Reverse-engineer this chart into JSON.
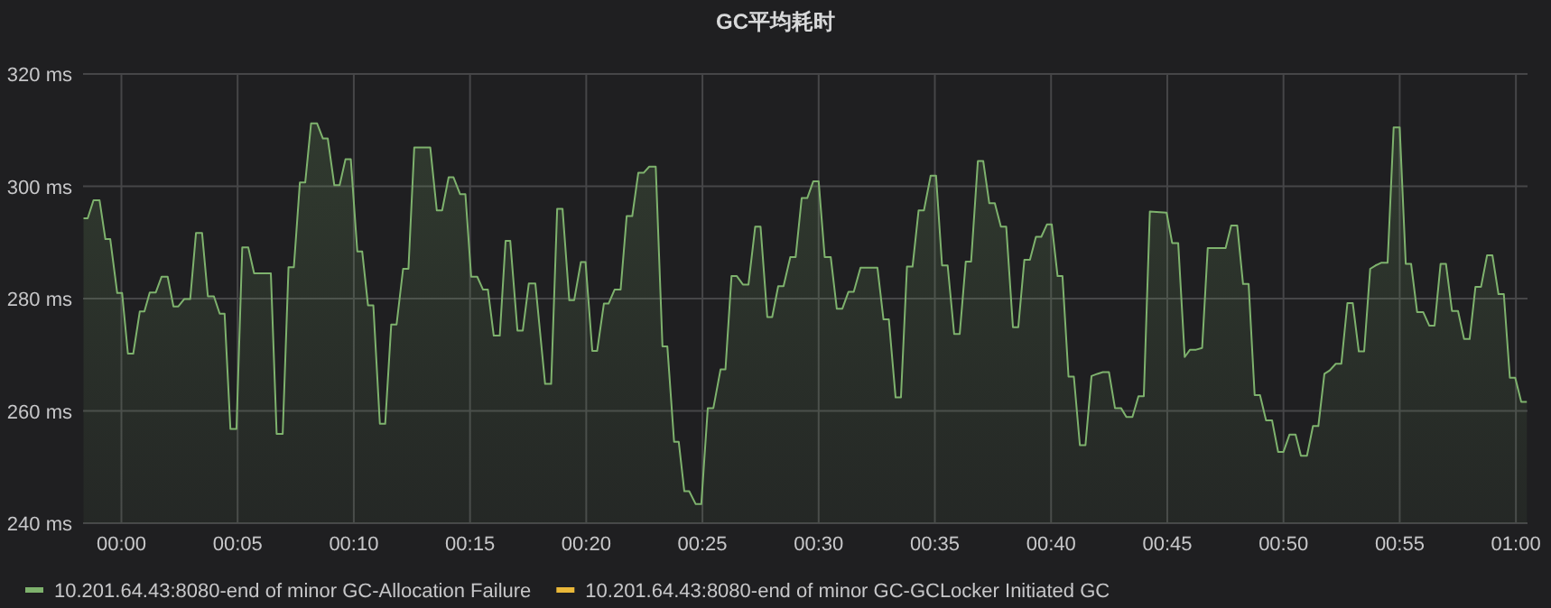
{
  "chart_data": {
    "type": "area",
    "title": "GC平均耗时",
    "xlim": [
      -1.65,
      60.5
    ],
    "ylim": [
      240,
      320
    ],
    "xticks": [
      {
        "value": 0,
        "label": "00:00"
      },
      {
        "value": 5,
        "label": "00:05"
      },
      {
        "value": 10,
        "label": "00:10"
      },
      {
        "value": 15,
        "label": "00:15"
      },
      {
        "value": 20,
        "label": "00:20"
      },
      {
        "value": 25,
        "label": "00:25"
      },
      {
        "value": 30,
        "label": "00:30"
      },
      {
        "value": 35,
        "label": "00:35"
      },
      {
        "value": 40,
        "label": "00:40"
      },
      {
        "value": 45,
        "label": "00:45"
      },
      {
        "value": 50,
        "label": "00:50"
      },
      {
        "value": 55,
        "label": "00:55"
      },
      {
        "value": 60,
        "label": "01:00"
      }
    ],
    "yticks": [
      {
        "value": 240,
        "label": "240 ms"
      },
      {
        "value": 260,
        "label": "260 ms"
      },
      {
        "value": 280,
        "label": "280 ms"
      },
      {
        "value": 300,
        "label": "300 ms"
      },
      {
        "value": 320,
        "label": "320 ms"
      }
    ],
    "grid": true,
    "legend": "bottom",
    "series": [
      {
        "name": "10.201.64.43:8080-end of minor GC-Allocation Failure",
        "color": "#7eb26d",
        "x": [
          -1.63,
          -1.45,
          -1.2,
          -0.94,
          -0.69,
          -0.48,
          -0.18,
          0.03,
          0.28,
          0.51,
          0.79,
          0.99,
          1.22,
          1.48,
          1.73,
          1.99,
          2.24,
          2.45,
          2.7,
          2.96,
          3.21,
          3.47,
          3.72,
          3.98,
          4.23,
          4.44,
          4.69,
          4.95,
          5.2,
          5.46,
          5.71,
          6.43,
          6.68,
          6.94,
          7.19,
          7.42,
          7.68,
          7.91,
          8.16,
          8.42,
          8.67,
          8.88,
          9.16,
          9.39,
          9.64,
          9.87,
          10.15,
          10.36,
          10.61,
          10.84,
          11.12,
          11.35,
          11.61,
          11.84,
          12.12,
          12.35,
          12.6,
          13.29,
          13.57,
          13.8,
          14.08,
          14.29,
          14.57,
          14.8,
          15.05,
          15.31,
          15.56,
          15.77,
          16.02,
          16.28,
          16.53,
          16.73,
          17.04,
          17.27,
          17.53,
          17.81,
          18.23,
          18.49,
          18.75,
          18.98,
          19.27,
          19.48,
          19.77,
          19.97,
          20.26,
          20.47,
          20.76,
          20.96,
          21.22,
          21.48,
          21.74,
          21.98,
          22.24,
          22.47,
          22.71,
          22.99,
          23.28,
          23.49,
          23.78,
          23.98,
          24.22,
          24.43,
          24.71,
          24.95,
          25.23,
          25.47,
          25.78,
          25.99,
          26.25,
          26.48,
          26.74,
          26.98,
          27.27,
          27.5,
          27.79,
          28.0,
          28.26,
          28.49,
          28.78,
          29.01,
          29.27,
          29.51,
          29.77,
          30.0,
          30.26,
          30.52,
          30.78,
          31.02,
          31.28,
          31.51,
          31.8,
          32.53,
          32.79,
          33.02,
          33.31,
          33.54,
          33.8,
          34.04,
          34.3,
          34.53,
          34.82,
          35.05,
          35.31,
          35.55,
          35.83,
          36.07,
          36.33,
          36.56,
          36.85,
          37.08,
          37.34,
          37.58,
          37.84,
          38.07,
          38.36,
          38.59,
          38.85,
          39.09,
          39.35,
          39.58,
          39.82,
          40.03,
          40.28,
          40.49,
          40.75,
          40.98,
          41.24,
          41.48,
          41.74,
          41.99,
          42.23,
          42.49,
          42.75,
          43.01,
          43.24,
          43.5,
          43.76,
          43.99,
          44.25,
          44.97,
          45.21,
          45.47,
          45.75,
          45.98,
          46.24,
          46.5,
          46.74,
          47.51,
          47.75,
          48.01,
          48.26,
          48.5,
          48.76,
          48.99,
          49.25,
          49.51,
          49.77,
          50.0,
          50.26,
          50.52,
          50.75,
          51.01,
          51.27,
          51.5,
          51.76,
          51.99,
          52.25,
          52.49,
          52.75,
          52.98,
          53.24,
          53.47,
          53.73,
          53.96,
          54.22,
          54.48,
          54.74,
          55.0,
          55.26,
          55.49,
          55.75,
          56.01,
          56.27,
          56.5,
          56.76,
          56.99,
          57.25,
          57.51,
          57.77,
          58.01,
          58.26,
          58.5,
          58.76,
          58.99,
          59.25,
          59.48,
          59.74,
          59.97,
          60.23,
          60.47
        ],
        "values": [
          294.3,
          294.3,
          297.5,
          297.5,
          290.6,
          290.6,
          281,
          281,
          270.2,
          270.2,
          277.7,
          277.7,
          281.1,
          281.1,
          283.9,
          283.9,
          278.6,
          278.6,
          279.9,
          279.9,
          291.7,
          291.7,
          280.4,
          280.4,
          277.3,
          277.3,
          256.8,
          256.8,
          289.1,
          289.1,
          284.5,
          284.5,
          255.9,
          255.9,
          285.6,
          285.6,
          300.7,
          300.7,
          311.2,
          311.2,
          308.5,
          308.5,
          300.2,
          300.2,
          304.8,
          304.8,
          288.4,
          288.4,
          278.8,
          278.8,
          257.7,
          257.7,
          275.4,
          275.4,
          285.3,
          285.3,
          306.9,
          306.9,
          295.7,
          295.7,
          301.6,
          301.6,
          298.6,
          298.6,
          283.9,
          283.9,
          281.6,
          281.6,
          273.4,
          273.4,
          290.3,
          290.3,
          274.3,
          274.3,
          282.7,
          282.7,
          264.8,
          264.8,
          296,
          296,
          279.7,
          279.7,
          286.5,
          286.5,
          270.7,
          270.7,
          279.1,
          279.1,
          281.6,
          281.6,
          294.7,
          294.7,
          302.4,
          302.4,
          303.5,
          303.5,
          271.5,
          271.5,
          254.5,
          254.5,
          245.7,
          245.7,
          243.4,
          243.4,
          260.5,
          260.5,
          267.4,
          267.4,
          284,
          284,
          282.5,
          282.5,
          292.8,
          292.8,
          276.7,
          276.7,
          282.2,
          282.2,
          287.4,
          287.4,
          297.9,
          297.9,
          300.9,
          300.9,
          287.4,
          287.4,
          278.2,
          278.2,
          281.2,
          281.2,
          285.5,
          285.5,
          276.3,
          276.3,
          262.4,
          262.4,
          285.7,
          285.7,
          295.7,
          295.7,
          301.9,
          301.9,
          285.9,
          285.9,
          273.7,
          273.7,
          286.6,
          286.6,
          304.5,
          304.5,
          297,
          297,
          292.8,
          292.8,
          274.9,
          274.9,
          286.9,
          286.9,
          291,
          291,
          293.2,
          293.2,
          284,
          284,
          266.1,
          266.1,
          253.9,
          253.9,
          266.2,
          266.6,
          266.9,
          266.9,
          260.5,
          260.5,
          258.9,
          258.9,
          262.6,
          262.6,
          295.5,
          295.3,
          289.9,
          289.9,
          269.6,
          270.9,
          270.9,
          271.2,
          289,
          289,
          293,
          293,
          282.6,
          282.6,
          262.8,
          262.8,
          258.3,
          258.3,
          252.7,
          252.7,
          255.8,
          255.8,
          252,
          252,
          257.3,
          257.3,
          266.6,
          267.2,
          268.4,
          268.4,
          279.2,
          279.2,
          270.6,
          270.6,
          285.3,
          285.9,
          286.4,
          286.4,
          310.5,
          310.5,
          286.2,
          286.2,
          277.6,
          277.6,
          275.2,
          275.2,
          286.2,
          286.2,
          277.8,
          277.8,
          272.8,
          272.8,
          282.1,
          282.1,
          287.7,
          287.7,
          280.8,
          280.8,
          265.9,
          265.9,
          261.6,
          261.6
        ]
      },
      {
        "name": "10.201.64.43:8080-end of minor GC-GCLocker Initiated GC",
        "color": "#eab839"
      }
    ]
  }
}
